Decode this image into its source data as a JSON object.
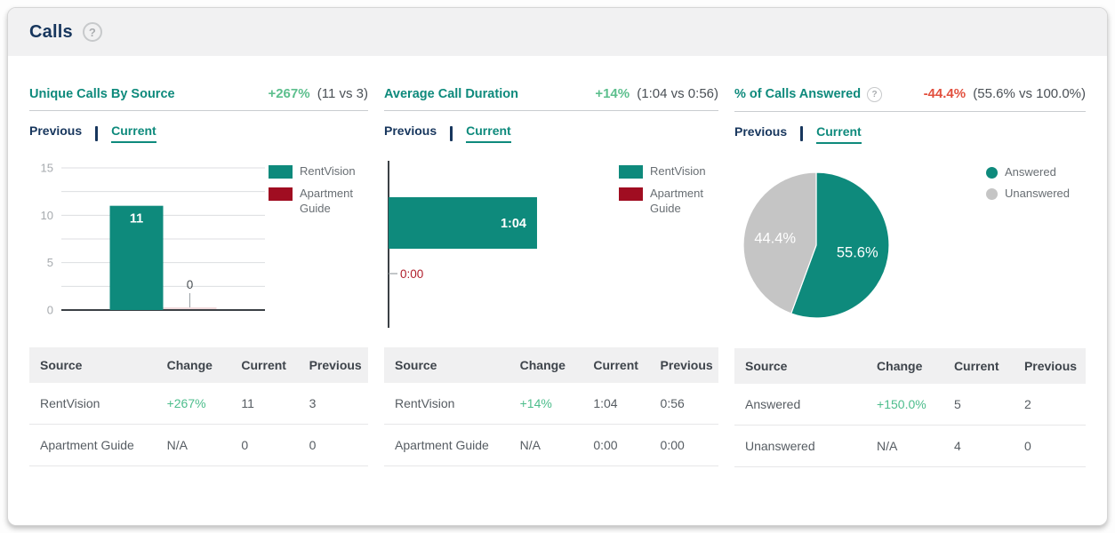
{
  "header": {
    "title": "Calls"
  },
  "icons": {
    "help": "?"
  },
  "tabs": {
    "previous": "Previous",
    "current": "Current",
    "active": "current"
  },
  "colors": {
    "teal": "#0e8a7c",
    "dark_red": "#a00d21",
    "positive_green": "#5cbf8d",
    "negative_red": "#e2503e",
    "navy": "#17365d",
    "pie_gray": "#c5c5c5",
    "axis_dark": "#3b4045",
    "gridline": "#dcdee0",
    "tick_label": "#a6aaae",
    "zero_bar_pink": "#f1dadc",
    "zero_duration_red": "#b01e2b"
  },
  "panels": [
    {
      "title": "Unique Calls By Source",
      "change": "+267%",
      "change_direction": "positive",
      "comparison": "(11 vs 3)",
      "table": {
        "headers": [
          "Source",
          "Change",
          "Current",
          "Previous"
        ],
        "rows": [
          [
            "RentVision",
            "+267%",
            "11",
            "3"
          ],
          [
            "Apartment Guide",
            "N/A",
            "0",
            "0"
          ]
        ]
      }
    },
    {
      "title": "Average Call Duration",
      "change": "+14%",
      "change_direction": "positive",
      "comparison": "(1:04 vs 0:56)",
      "table": {
        "headers": [
          "Source",
          "Change",
          "Current",
          "Previous"
        ],
        "rows": [
          [
            "RentVision",
            "+14%",
            "1:04",
            "0:56"
          ],
          [
            "Apartment Guide",
            "N/A",
            "0:00",
            "0:00"
          ]
        ]
      }
    },
    {
      "title": "% of Calls Answered",
      "has_help": true,
      "change": "-44.4%",
      "change_direction": "negative",
      "comparison": "(55.6% vs 100.0%)",
      "table": {
        "headers": [
          "Source",
          "Change",
          "Current",
          "Previous"
        ],
        "rows": [
          [
            "Answered",
            "+150.0%",
            "5",
            "2"
          ],
          [
            "Unanswered",
            "N/A",
            "4",
            "0"
          ]
        ]
      }
    }
  ],
  "chart_data": [
    {
      "type": "bar",
      "title": "Unique Calls By Source",
      "categories": [
        "RentVision",
        "Apartment Guide"
      ],
      "values": [
        11,
        0
      ],
      "value_labels": [
        "11",
        "0"
      ],
      "ylim": [
        0,
        15
      ],
      "yticks": [
        0,
        5,
        10,
        15
      ],
      "grid_interval": 2.5,
      "legend": [
        {
          "label": "RentVision",
          "color": "#0e8a7c"
        },
        {
          "label": "Apartment Guide",
          "color": "#a00d21"
        }
      ]
    },
    {
      "type": "bar-horizontal",
      "title": "Average Call Duration",
      "categories": [
        "RentVision",
        "Apartment Guide"
      ],
      "values_seconds": [
        64,
        0
      ],
      "value_labels": [
        "1:04",
        "0:00"
      ],
      "legend": [
        {
          "label": "RentVision",
          "color": "#0e8a7c"
        },
        {
          "label": "Apartment Guide",
          "color": "#a00d21"
        }
      ]
    },
    {
      "type": "pie",
      "title": "% of Calls Answered",
      "slices": [
        {
          "label": "Answered",
          "value": 55.6,
          "display": "55.6%",
          "color": "#0e8a7c"
        },
        {
          "label": "Unanswered",
          "value": 44.4,
          "display": "44.4%",
          "color": "#c5c5c5"
        }
      ],
      "legend_position": "right",
      "legend_marker": "dot"
    }
  ]
}
